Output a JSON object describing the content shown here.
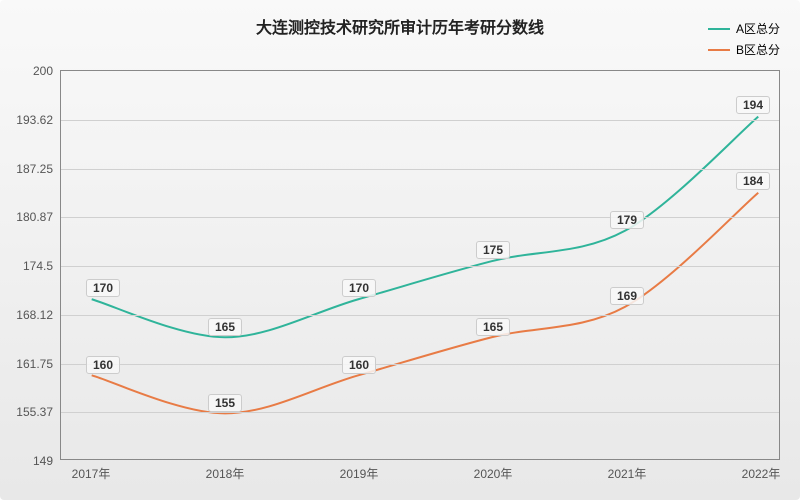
{
  "chart": {
    "type": "line",
    "title": "大连测控技术研究所审计历年考研分数线",
    "title_fontsize": 16,
    "title_color": "#222222",
    "background_gradient": [
      "#f9f9f9",
      "#e8e8e8"
    ],
    "plot_border_color": "#888888",
    "grid_color": "#d0d0d0",
    "label_fontsize": 12,
    "x": {
      "categories": [
        "2017年",
        "2018年",
        "2019年",
        "2020年",
        "2021年",
        "2022年"
      ]
    },
    "y": {
      "min": 149,
      "max": 200,
      "ticks": [
        149,
        155.37,
        161.75,
        168.12,
        174.5,
        180.87,
        187.25,
        193.62,
        200
      ]
    },
    "series": [
      {
        "name": "A区总分",
        "color": "#2fb49a",
        "line_width": 2,
        "values": [
          170,
          165,
          170,
          175,
          179,
          194
        ],
        "labels": [
          "170",
          "165",
          "170",
          "175",
          "179",
          "194"
        ]
      },
      {
        "name": "B区总分",
        "color": "#e87b45",
        "line_width": 2,
        "values": [
          160,
          155,
          160,
          165,
          169,
          184
        ],
        "labels": [
          "160",
          "155",
          "160",
          "165",
          "169",
          "184"
        ]
      }
    ],
    "legend": {
      "position": "top-right"
    }
  }
}
